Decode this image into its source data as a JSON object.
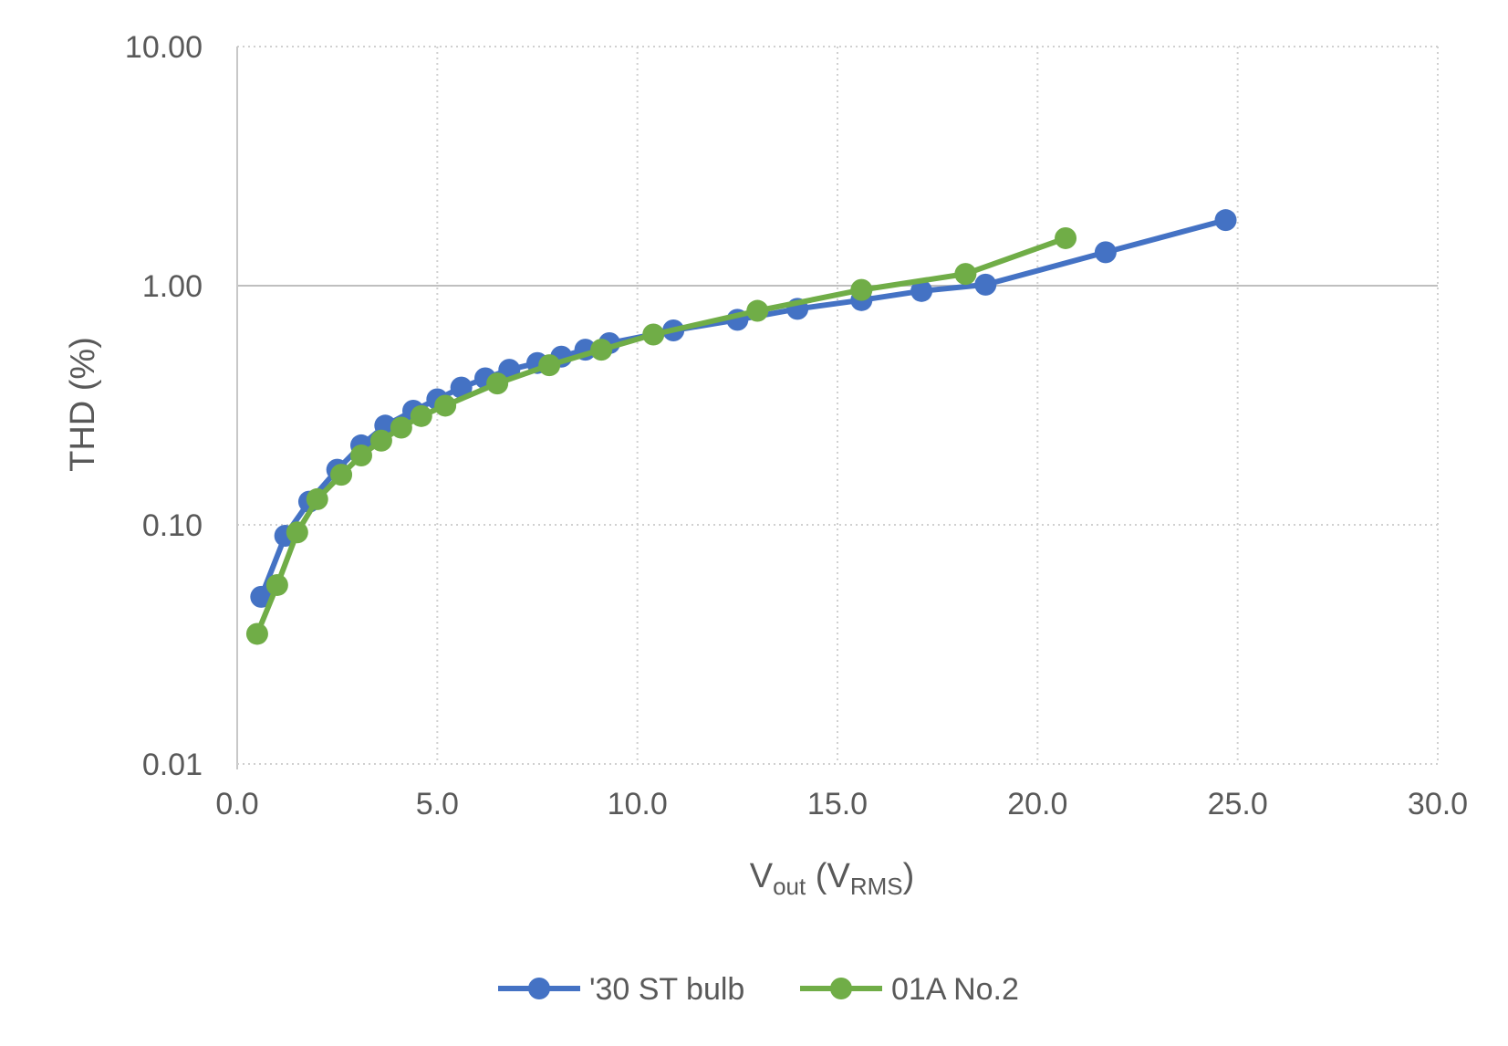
{
  "chart_data": {
    "type": "line",
    "x_axis": {
      "label_main": "V",
      "label_sub1": "out",
      "label_mid": " (V",
      "label_sub2": "RMS",
      "label_end": ")",
      "min": 0,
      "max": 30,
      "step": 5,
      "tick_labels": [
        "0.0",
        "5.0",
        "10.0",
        "15.0",
        "20.0",
        "25.0",
        "30.0"
      ]
    },
    "y_axis": {
      "label": "THD (%)",
      "scale": "log",
      "min": 0.01,
      "max": 10,
      "tick_values": [
        0.01,
        0.1,
        1,
        10
      ],
      "tick_labels": [
        "0.01",
        "0.10",
        "1.00",
        "10.00"
      ]
    },
    "grid": true,
    "legend_position": "bottom",
    "series": [
      {
        "name": "'30 ST bulb",
        "color": "#4472C4",
        "x": [
          0.6,
          1.2,
          1.8,
          2.5,
          3.1,
          3.7,
          4.4,
          5.0,
          5.6,
          6.2,
          6.8,
          7.5,
          8.1,
          8.7,
          9.3,
          10.9,
          12.5,
          14.0,
          15.6,
          17.1,
          18.7,
          21.7,
          24.7
        ],
        "y": [
          0.05,
          0.09,
          0.125,
          0.17,
          0.215,
          0.26,
          0.3,
          0.335,
          0.375,
          0.41,
          0.445,
          0.475,
          0.505,
          0.54,
          0.575,
          0.65,
          0.72,
          0.8,
          0.87,
          0.95,
          1.01,
          1.38,
          1.88
        ]
      },
      {
        "name": "01A No.2",
        "color": "#70AD47",
        "x": [
          0.5,
          1.0,
          1.5,
          2.0,
          2.6,
          3.1,
          3.6,
          4.1,
          4.6,
          5.2,
          6.5,
          7.8,
          9.1,
          10.4,
          13.0,
          15.6,
          18.2,
          20.7
        ],
        "y": [
          0.035,
          0.056,
          0.093,
          0.128,
          0.162,
          0.195,
          0.225,
          0.255,
          0.285,
          0.315,
          0.39,
          0.465,
          0.54,
          0.625,
          0.785,
          0.96,
          1.12,
          1.58
        ]
      }
    ]
  }
}
